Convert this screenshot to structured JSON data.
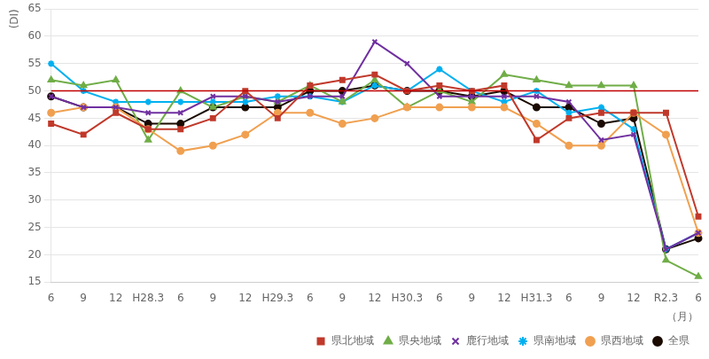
{
  "chart_data": {
    "type": "line",
    "categories": [
      "6",
      "9",
      "12",
      "H28.3",
      "6",
      "9",
      "12",
      "H29.3",
      "6",
      "9",
      "12",
      "H30.3",
      "6",
      "9",
      "12",
      "H31.3",
      "6",
      "9",
      "12",
      "R2.3",
      "6"
    ],
    "series": [
      {
        "name": "県北地域",
        "color": "#c0392b",
        "marker": "square",
        "values": [
          44,
          42,
          46,
          43,
          43,
          45,
          50,
          45,
          51,
          52,
          53,
          50,
          51,
          50,
          51,
          41,
          45,
          46,
          46,
          46,
          27
        ]
      },
      {
        "name": "鹿行地域",
        "color": "#7030a0",
        "marker": "x",
        "values": [
          49,
          47,
          47,
          46,
          46,
          49,
          49,
          48,
          49,
          49,
          59,
          55,
          49,
          49,
          49,
          49,
          48,
          41,
          42,
          21,
          24
        ]
      },
      {
        "name": "県西地域",
        "color": "#f0a050",
        "marker": "circle",
        "values": [
          46,
          47,
          47,
          43,
          39,
          40,
          42,
          46,
          46,
          44,
          45,
          47,
          47,
          47,
          47,
          44,
          40,
          40,
          46,
          42,
          24
        ]
      },
      {
        "name": "県央地域",
        "color": "#70ad47",
        "marker": "triangle",
        "values": [
          52,
          51,
          52,
          41,
          50,
          47,
          49,
          48,
          51,
          48,
          52,
          47,
          50,
          48,
          53,
          52,
          51,
          51,
          51,
          19,
          16
        ]
      },
      {
        "name": "県南地域",
        "color": "#00b0f0",
        "marker": "star",
        "values": [
          55,
          50,
          48,
          48,
          48,
          48,
          48,
          49,
          49,
          48,
          51,
          50,
          54,
          50,
          48,
          50,
          46,
          47,
          43,
          21,
          24
        ]
      },
      {
        "name": "全県",
        "color": "#1a0a00",
        "marker": "circle",
        "values": [
          49,
          47,
          47,
          44,
          44,
          47,
          47,
          47,
          50,
          50,
          51,
          50,
          50,
          49,
          50,
          47,
          47,
          44,
          45,
          21,
          23
        ]
      }
    ],
    "legend_order": [
      "県北地域",
      "県央地域",
      "鹿行地域",
      "県南地域",
      "県西地域",
      "全県"
    ],
    "hlines": [
      {
        "value": 50,
        "color": "#c00000"
      }
    ],
    "ylabel": "(DI)",
    "xlabel": "（月）",
    "ylim": [
      15,
      65
    ],
    "yticks": [
      15,
      20,
      25,
      30,
      35,
      40,
      45,
      50,
      55,
      60,
      65
    ],
    "grid": "y",
    "legend": "lower right"
  }
}
